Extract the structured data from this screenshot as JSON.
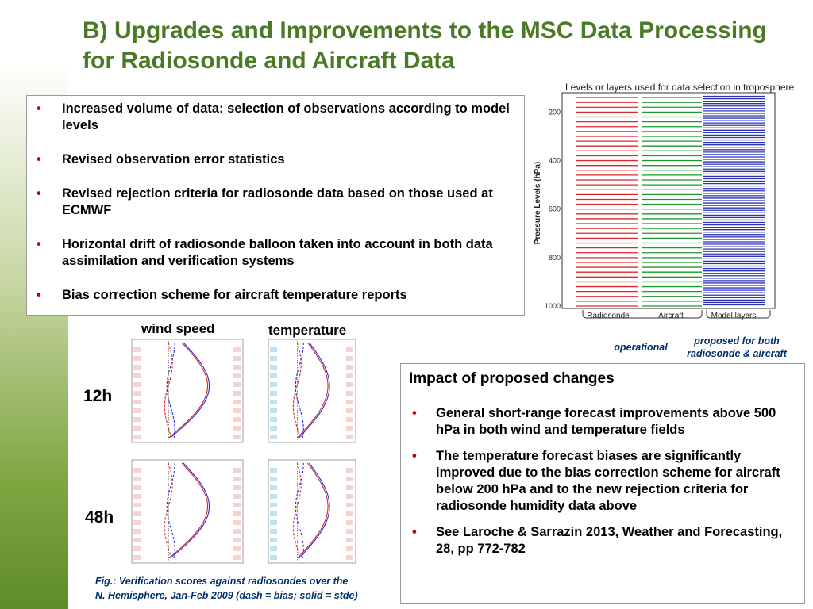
{
  "title": "B) Upgrades and Improvements to the MSC Data Processing for Radiosonde and Aircraft Data",
  "bullets": [
    "Increased volume of data: selection of observations according to model levels",
    "Revised observation error statistics",
    "Revised rejection criteria for radiosonde data based on those used at ECMWF",
    "Horizontal drift of radiosonde balloon taken into account in both data assimilation and verification systems",
    "Bias correction scheme for aircraft temperature reports"
  ],
  "levels_plot": {
    "title": "Levels or layers used for data selection in troposphere",
    "ylabel": "Pressure Levels (hPa)",
    "yticks": [
      "200",
      "400",
      "600",
      "800",
      "1000"
    ],
    "columns": [
      "Radiosonde",
      "Aircraft",
      "Model layers"
    ],
    "colors": {
      "radiosonde": "#e0262a",
      "aircraft": "#1a9a2a",
      "model": "#2d33b5"
    },
    "note_operational": "operational",
    "note_proposed": "proposed for both radiosonde & aircraft"
  },
  "verif": {
    "wind_label": "wind speed",
    "temp_label": "temperature",
    "row_12h": "12h",
    "row_48h": "48h",
    "caption_line1": "Fig.: Verification scores against radiosondes over the",
    "caption_line2": "N. Hemisphere, Jan-Feb 2009 (dash = bias; solid = stde)"
  },
  "impact": {
    "title": "Impact of proposed changes",
    "items": [
      "General short-range forecast improvements above 500 hPa in both wind and temperature fields",
      "The temperature forecast biases are significantly improved due to the bias correction scheme for aircraft below 200 hPa and to the new rejection criteria for radiosonde humidity data above",
      "See Laroche & Sarrazin 2013, Weather and Forecasting, 28, pp 772-782"
    ]
  }
}
